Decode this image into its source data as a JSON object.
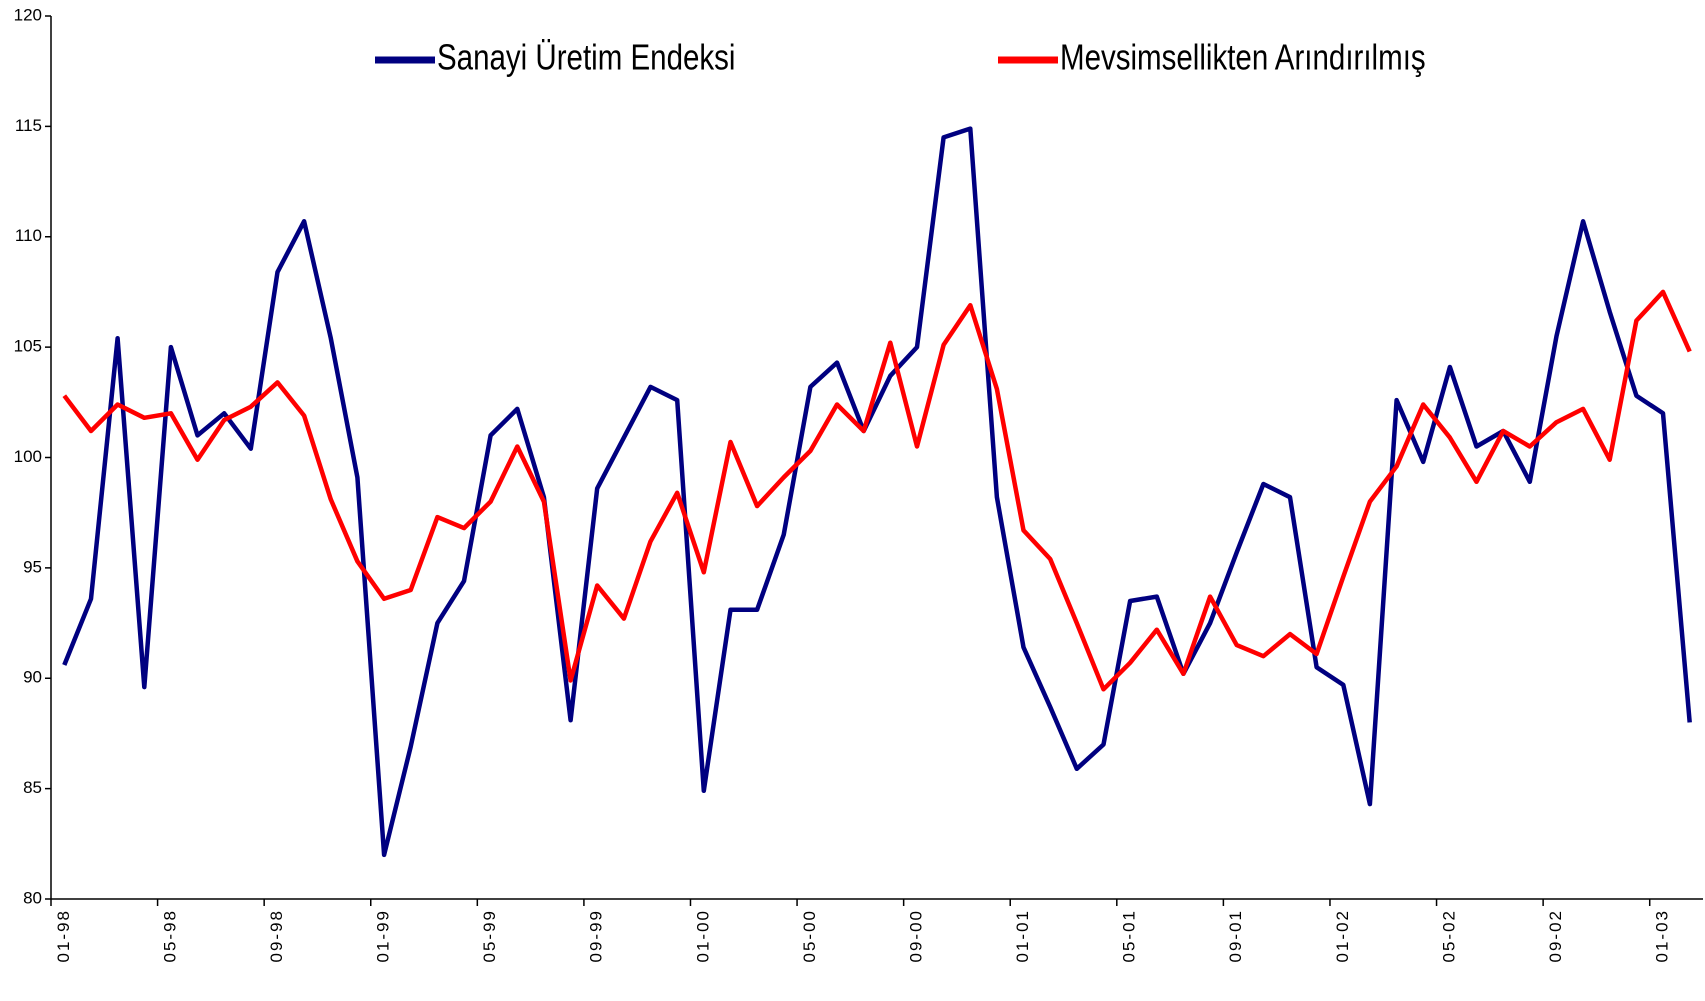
{
  "chart_data": {
    "type": "line",
    "categories": [
      "01-98",
      null,
      null,
      null,
      "05-98",
      null,
      null,
      null,
      "09-98",
      null,
      null,
      null,
      "01-99",
      null,
      null,
      null,
      "05-99",
      null,
      null,
      null,
      "09-99",
      null,
      null,
      null,
      "01-00",
      null,
      null,
      null,
      "05-00",
      null,
      null,
      null,
      "09-00",
      null,
      null,
      null,
      "01-01",
      null,
      null,
      null,
      "05-01",
      null,
      null,
      null,
      "09-01",
      null,
      null,
      null,
      "01-02",
      null,
      null,
      null,
      "05-02",
      null,
      null,
      null,
      "09-02",
      null,
      null,
      null,
      "01-03",
      null
    ],
    "series": [
      {
        "name": "Sanayi Üretim Endeksi",
        "color": "#000080",
        "values": [
          90.6,
          93.6,
          105.4,
          89.6,
          105.0,
          101.0,
          102.0,
          100.4,
          108.4,
          110.7,
          105.4,
          99.1,
          82.0,
          86.9,
          92.5,
          94.4,
          101.0,
          102.2,
          98.2,
          88.1,
          98.6,
          100.9,
          103.2,
          102.6,
          84.9,
          93.1,
          93.1,
          96.5,
          103.2,
          104.3,
          101.2,
          103.7,
          105.0,
          114.5,
          114.9,
          98.2,
          91.4,
          88.7,
          85.9,
          87.0,
          93.5,
          93.7,
          90.2,
          92.5,
          95.7,
          98.8,
          98.2,
          90.5,
          89.7,
          84.3,
          102.6,
          99.8,
          104.1,
          100.5,
          101.2,
          98.9,
          105.5,
          110.7,
          106.6,
          102.8,
          102.0,
          88.0
        ]
      },
      {
        "name": "Mevsimsellikten Arındırılmış",
        "color": "#ff0000",
        "values": [
          102.8,
          101.2,
          102.4,
          101.8,
          102.0,
          99.9,
          101.7,
          102.3,
          103.4,
          101.9,
          98.1,
          95.3,
          93.6,
          94.0,
          97.3,
          96.8,
          98.0,
          100.5,
          98.0,
          89.9,
          94.2,
          92.7,
          96.2,
          98.4,
          94.8,
          100.7,
          97.8,
          99.1,
          100.3,
          102.4,
          101.2,
          105.2,
          100.5,
          105.1,
          106.9,
          103.1,
          96.7,
          95.4,
          92.5,
          89.5,
          90.7,
          92.2,
          90.2,
          93.7,
          91.5,
          91.0,
          92.0,
          91.1,
          94.6,
          98.0,
          99.6,
          102.4,
          100.9,
          98.9,
          101.2,
          100.5,
          101.6,
          102.2,
          99.9,
          106.2,
          107.5,
          104.8
        ]
      }
    ],
    "ylim": [
      80,
      120
    ],
    "yticks": [
      80,
      85,
      90,
      95,
      100,
      105,
      110,
      115,
      120
    ],
    "grid": false
  }
}
